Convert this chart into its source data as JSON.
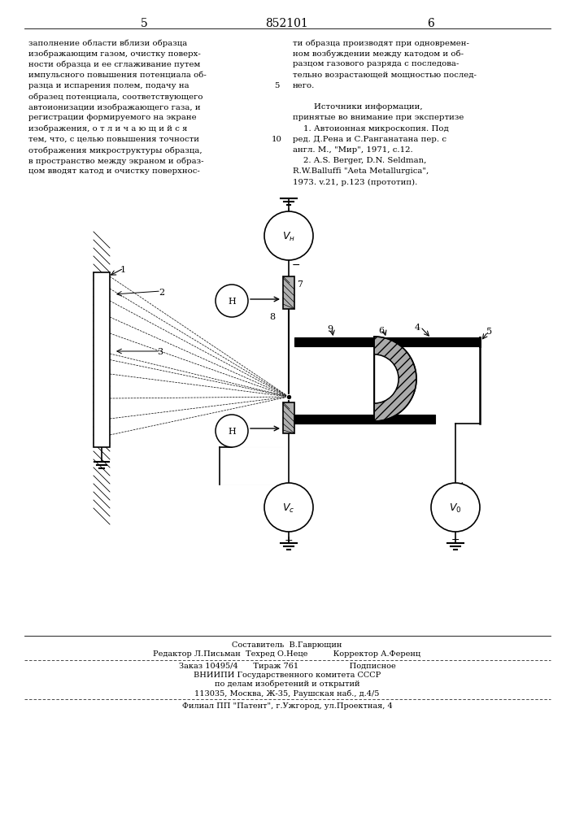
{
  "page_number_left": "5",
  "patent_number": "852101",
  "page_number_right": "6",
  "bg_color": "#ffffff",
  "text_color": "#000000",
  "footer_line1": "Составитель  В.Гаврющин",
  "footer_line2": "Редактор Л.Письман  Техред О.Неце          Корректор А.Ференц",
  "footer_line3": "Заказ 10495/4      Тираж 761                    Подписное",
  "footer_line4": "ВНИИПИ Государственного комитета СССР",
  "footer_line5": "по делам изобретений и открытий",
  "footer_line6": "113035, Москва, Ж-35, Раушская наб., д.4/5",
  "footer_line7": "Филиал ПП \"Патент\", г.Ужгород, ул.Проектная, 4",
  "left_lines": [
    "заполнение области вблизи образца",
    "изображающим газом, очистку поверх-",
    "ности образца и ее сглаживание путем",
    "импульсного повышения потенциала об-",
    "разца и испарения полем, подачу на",
    "образец потенциала, соответствующего",
    "автоионизации изображающего газа, и",
    "регистрации формируемого на экране",
    "изображения, о т л и ч а ю щ и й с я",
    "тем, что, с целью повышения точности",
    "отображения микроструктуры образца,",
    "в пространство между экраном и образ-",
    "цом вводят катод и очистку поверхнос-"
  ],
  "right_lines": [
    "ти образца производят при одновремен-",
    "ном возбуждении между катодом и об-",
    "разцом газового разряда с последова-",
    "тельно возрастающей мощностью послед-",
    "него.",
    "",
    "        Источники информации,",
    "принятые во внимание при экспертизе",
    "    1. Автоионная микроскопия. Под",
    "ред. Д.Рена и С.Ранганатана пер. с",
    "англ. М., \"Мир\", 1971, с.12.",
    "    2. A.S. Berger, D.N. Seldman,",
    "R.W.Balluffi \"Aeta Metallurgica\",",
    "1973. v.21, p.123 (прототип)."
  ]
}
